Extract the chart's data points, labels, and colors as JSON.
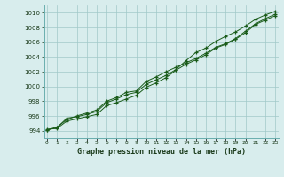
{
  "title": "Graphe pression niveau de la mer (hPa)",
  "x_labels": [
    "0",
    "1",
    "2",
    "3",
    "4",
    "5",
    "6",
    "7",
    "8",
    "9",
    "10",
    "11",
    "12",
    "13",
    "14",
    "15",
    "16",
    "17",
    "18",
    "19",
    "20",
    "21",
    "22",
    "23"
  ],
  "ylim": [
    993.0,
    1011.0
  ],
  "yticks": [
    994,
    996,
    998,
    1000,
    1002,
    1004,
    1006,
    1008,
    1010
  ],
  "background_color": "#d8eded",
  "grid_color": "#a0c8c8",
  "line_color": "#1a5c1a",
  "series": [
    [
      994.1,
      994.4,
      995.7,
      995.9,
      996.2,
      996.6,
      997.8,
      998.3,
      998.9,
      999.2,
      1000.3,
      1000.9,
      1001.5,
      1002.3,
      1003.5,
      1004.6,
      1005.2,
      1006.1,
      1006.8,
      1007.4,
      1008.2,
      1009.1,
      1009.7,
      1010.2
    ],
    [
      994.1,
      994.5,
      995.5,
      996.0,
      996.4,
      996.8,
      998.0,
      998.5,
      999.2,
      999.4,
      1000.7,
      1001.3,
      1002.0,
      1002.6,
      1003.2,
      1003.8,
      1004.5,
      1005.3,
      1005.8,
      1006.5,
      1007.5,
      1008.5,
      1009.2,
      1009.8
    ],
    [
      994.2,
      994.3,
      995.3,
      995.6,
      995.9,
      996.2,
      997.4,
      997.8,
      998.3,
      998.8,
      999.9,
      1000.5,
      1001.2,
      1002.2,
      1003.0,
      1003.6,
      1004.3,
      1005.2,
      1005.7,
      1006.4,
      1007.3,
      1008.4,
      1009.0,
      1009.6
    ]
  ]
}
